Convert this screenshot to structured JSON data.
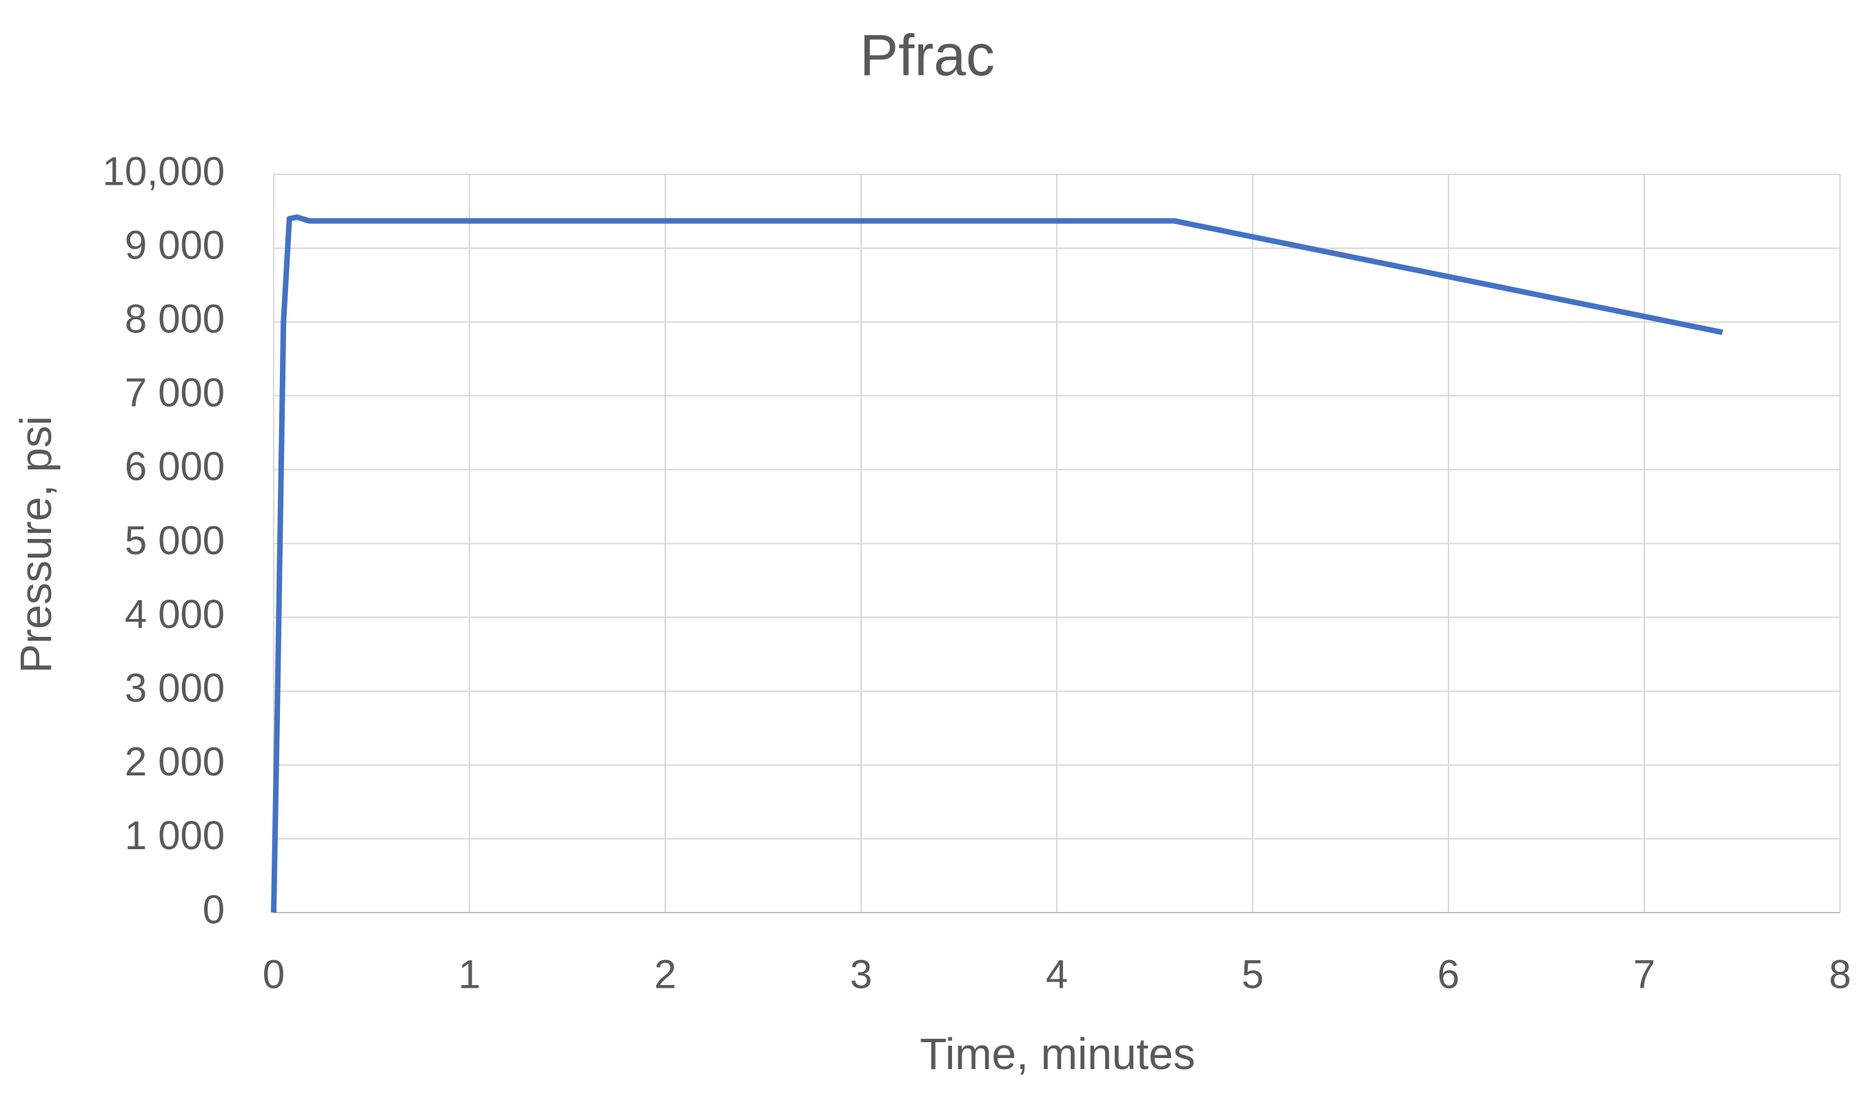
{
  "chart_data": {
    "type": "line",
    "title": "Pfrac",
    "x_label": "Time, minutes",
    "y_label": "Pressure, psi",
    "x": [
      0,
      0.02,
      0.05,
      0.08,
      0.12,
      0.18,
      4.6,
      7.4
    ],
    "series": [
      {
        "name": "Pfrac",
        "color": "#4472c4",
        "values": [
          0,
          3000,
          8000,
          9400,
          9420,
          9370,
          9370,
          7860
        ]
      }
    ],
    "xlim": [
      0,
      8
    ],
    "xticks": [
      0,
      1,
      2,
      3,
      4,
      5,
      6,
      7,
      8
    ],
    "ylim": [
      0,
      10000
    ],
    "yticks": [
      0,
      {
        "value": 1000,
        "label": "1 000"
      },
      {
        "value": 2000,
        "label": "2 000"
      },
      {
        "value": 3000,
        "label": "3 000"
      },
      {
        "value": 4000,
        "label": "4 000"
      },
      {
        "value": 5000,
        "label": "5 000"
      },
      {
        "value": 6000,
        "label": "6 000"
      },
      {
        "value": 7000,
        "label": "7 000"
      },
      {
        "value": 8000,
        "label": "8 000"
      },
      {
        "value": 9000,
        "label": "9 000"
      },
      {
        "value": 10000,
        "label": "10,000"
      }
    ],
    "grid": true
  }
}
